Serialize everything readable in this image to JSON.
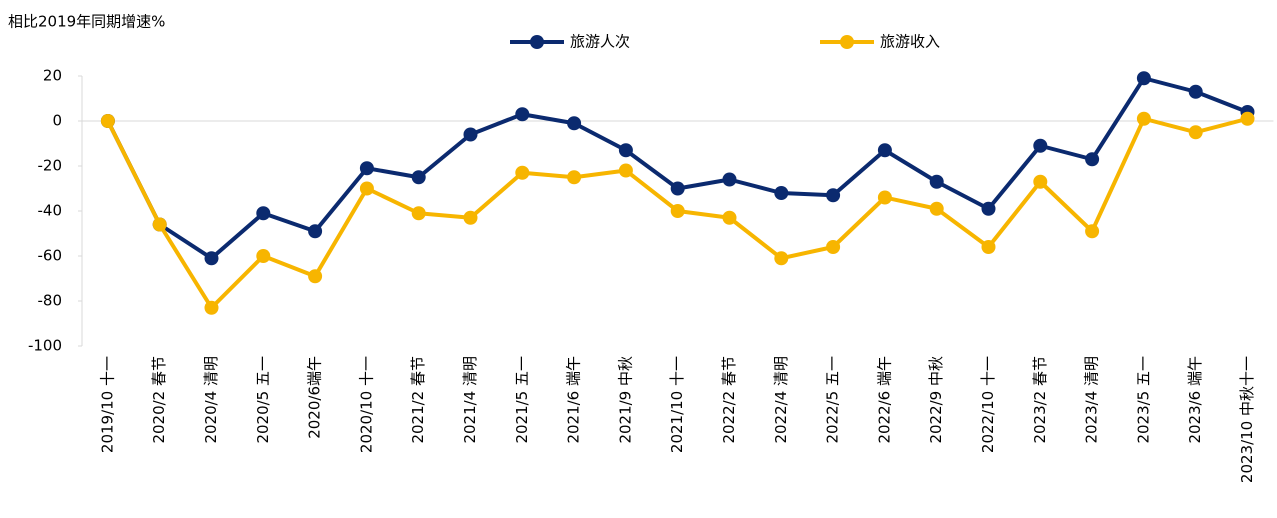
{
  "chart_data": {
    "type": "line",
    "y_axis_label": "相比2019年同期增速%",
    "categories": [
      "2019/10 十一",
      "2020/2 春节",
      "2020/4 清明",
      "2020/5 五一",
      "2020/6端午",
      "2020/10 十一",
      "2021/2 春节",
      "2021/4 清明",
      "2021/5 五一",
      "2021/6 端午",
      "2021/9 中秋",
      "2021/10 十一",
      "2022/2 春节",
      "2022/4 清明",
      "2022/5 五一",
      "2022/6 端午",
      "2022/9 中秋",
      "2022/10 十一",
      "2023/2 春节",
      "2023/4 清明",
      "2023/5 五一",
      "2023/6 端午",
      "2023/10 中秋十一"
    ],
    "series": [
      {
        "name": "旅游人次",
        "color": "#0b2a6f",
        "values": [
          0,
          -46,
          -61,
          -41,
          -49,
          -21,
          -25,
          -6,
          3,
          -1,
          -13,
          -30,
          -26,
          -32,
          -33,
          -13,
          -27,
          -39,
          -11,
          -17,
          19,
          13,
          4
        ]
      },
      {
        "name": "旅游收入",
        "color": "#f7b500",
        "values": [
          0,
          -46,
          -83,
          -60,
          -69,
          -30,
          -41,
          -43,
          -23,
          -25,
          -22,
          -40,
          -43,
          -61,
          -56,
          -34,
          -39,
          -56,
          -27,
          -49,
          1,
          -5,
          1
        ]
      }
    ],
    "ylim": [
      -100,
      20
    ],
    "yticks": [
      -100,
      -80,
      -60,
      -40,
      -20,
      0,
      20
    ]
  }
}
